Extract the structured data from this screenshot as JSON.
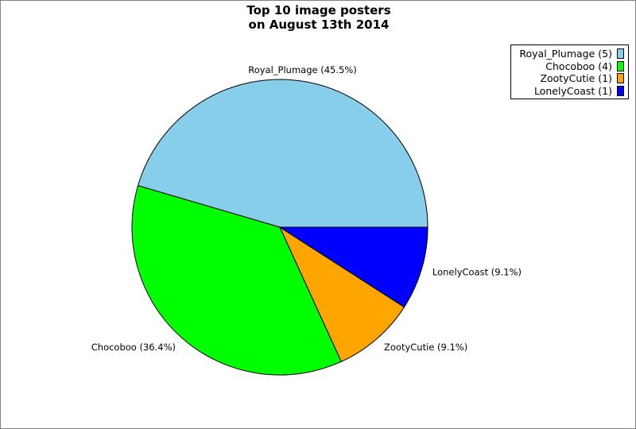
{
  "chart_data": {
    "type": "pie",
    "title_lines": [
      "Top 10 image posters",
      "on August 13th 2014"
    ],
    "slices": [
      {
        "name": "Royal_Plumage",
        "value": 5,
        "percent": "45.5%",
        "color": "#87ceeb"
      },
      {
        "name": "Chocoboo",
        "value": 4,
        "percent": "36.4%",
        "color": "#00ff00"
      },
      {
        "name": "ZootyCutie",
        "value": 1,
        "percent": "9.1%",
        "color": "#ffa500"
      },
      {
        "name": "LonelyCoast",
        "value": 1,
        "percent": "9.1%",
        "color": "#0000ff"
      }
    ],
    "legend_placement": "top-right"
  }
}
